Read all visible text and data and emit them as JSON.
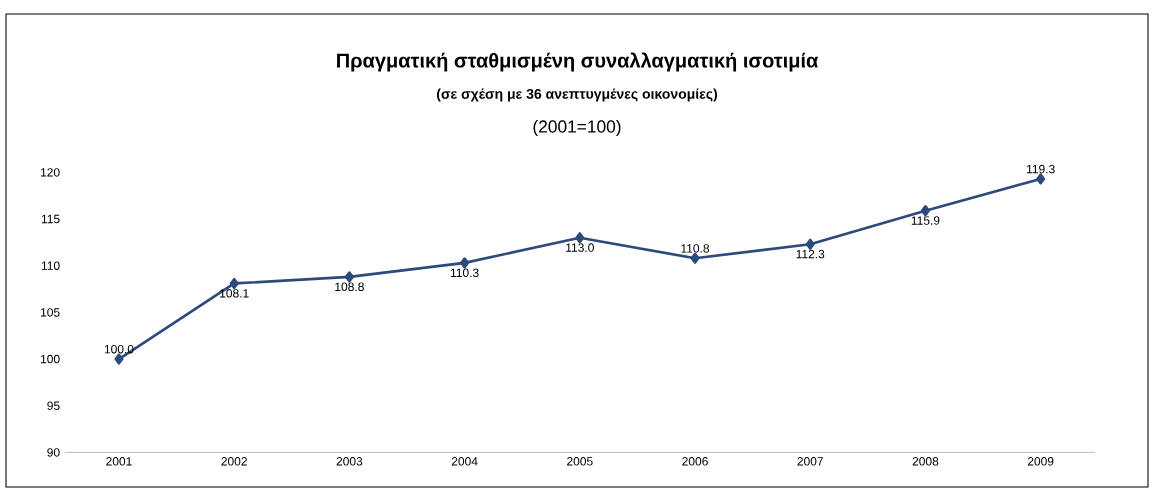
{
  "chart_data": {
    "type": "line",
    "title": "Πραγματική σταθμισμένη συναλλαγματική ισοτιμία",
    "subtitle": "(σε σχέση με 36 ανεπτυγμένες οικονομίες)",
    "annotations": [
      "(2001=100)"
    ],
    "categories": [
      "2001",
      "2002",
      "2003",
      "2004",
      "2005",
      "2006",
      "2007",
      "2008",
      "2009"
    ],
    "series": [
      {
        "color": "#2e4a7d",
        "values": [
          100.0,
          108.1,
          108.8,
          110.3,
          113.0,
          110.8,
          112.3,
          115.9,
          119.3
        ],
        "value_labels": [
          "100.0",
          "108.1",
          "108.8",
          "110.3",
          "113.0",
          "110.8",
          "112.3",
          "115.9",
          "119.3"
        ]
      }
    ],
    "ylim": [
      90,
      120
    ],
    "yticks": [
      90,
      95,
      100,
      105,
      110,
      115,
      120
    ],
    "marker": "diamond",
    "line_style": "solid",
    "grid": false
  }
}
